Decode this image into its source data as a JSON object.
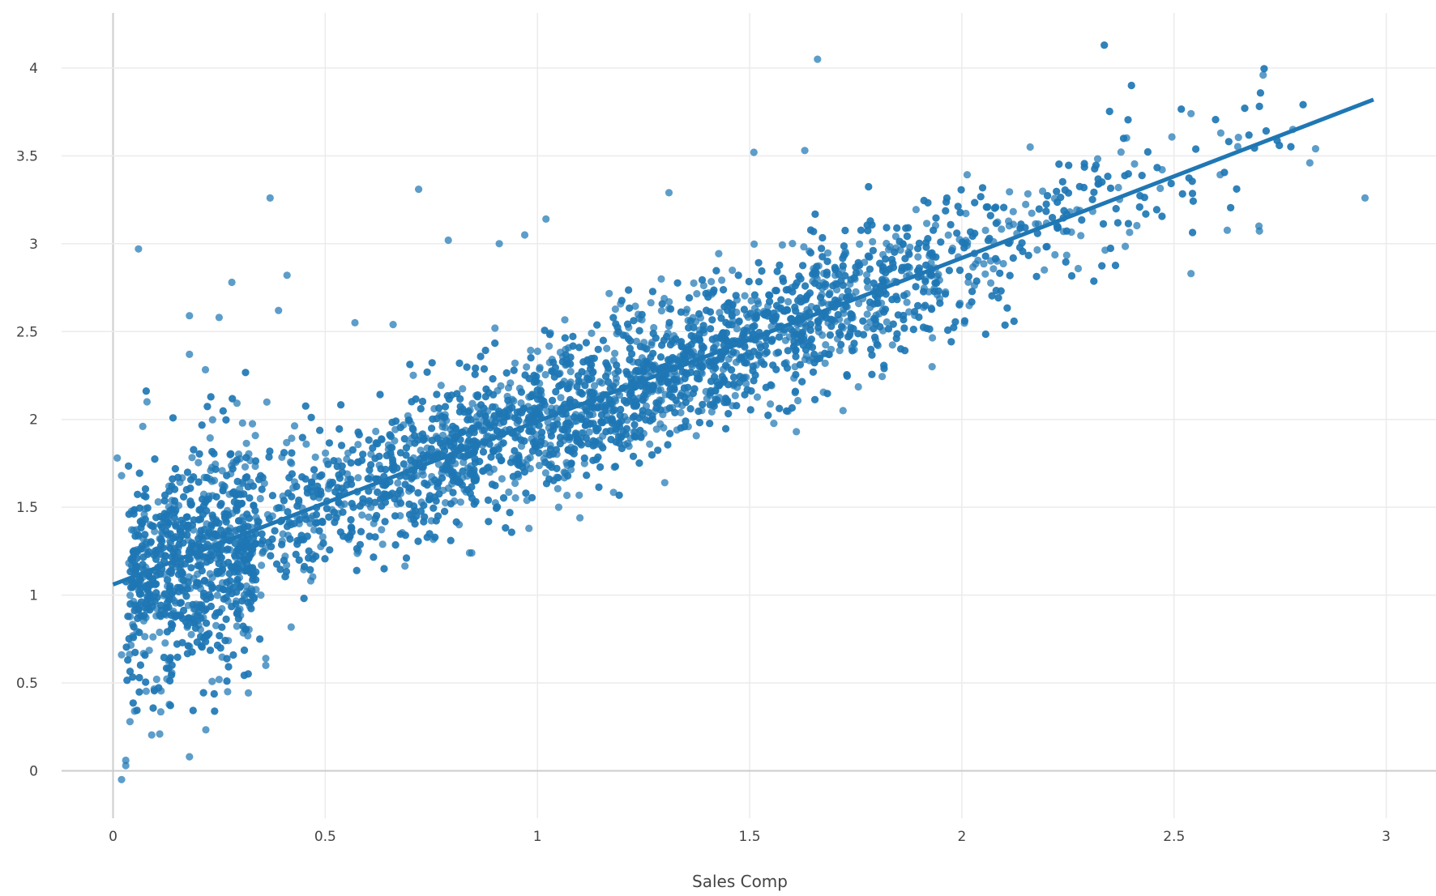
{
  "chart_data": {
    "type": "scatter",
    "title": "",
    "xlabel": "Sales Comp",
    "ylabel": "",
    "xlim": [
      -0.11,
      3.1
    ],
    "ylim": [
      -0.25,
      4.3
    ],
    "x_ticks": [
      0,
      0.5,
      1,
      1.5,
      2,
      2.5,
      3
    ],
    "x_tick_labels": [
      "0",
      "0.5",
      "1",
      "1.5",
      "2",
      "2.5",
      "3"
    ],
    "y_ticks": [
      0,
      0.5,
      1,
      1.5,
      2,
      2.5,
      3,
      3.5,
      4
    ],
    "y_tick_labels": [
      "0",
      "0.5",
      "1",
      "1.5",
      "2",
      "2.5",
      "3",
      "3.5",
      "4"
    ],
    "grid": true,
    "legend": "none",
    "colors": {
      "points": "#1f77b4",
      "trend_line": "#1f77b4",
      "grid": "#ebebeb",
      "zero_line": "#cccccc",
      "text": "#444444"
    },
    "trend_line": {
      "x": [
        0,
        2.97
      ],
      "y": [
        1.06,
        3.82
      ]
    },
    "series": [
      {
        "values": [
          [
            0.01,
            1.78
          ],
          [
            0.02,
            1.68
          ],
          [
            0.06,
            2.97
          ],
          [
            0.07,
            1.96
          ],
          [
            0.08,
            2.1
          ],
          [
            0.18,
            2.59
          ],
          [
            0.18,
            2.37
          ],
          [
            0.25,
            2.58
          ],
          [
            0.28,
            2.78
          ],
          [
            0.37,
            3.26
          ],
          [
            0.41,
            2.82
          ],
          [
            0.39,
            2.62
          ],
          [
            0.72,
            3.31
          ],
          [
            0.79,
            3.02
          ],
          [
            0.91,
            3.0
          ],
          [
            1.02,
            3.14
          ],
          [
            0.97,
            3.05
          ],
          [
            1.31,
            3.29
          ],
          [
            1.51,
            3.52
          ],
          [
            1.63,
            3.53
          ],
          [
            1.66,
            4.05
          ],
          [
            2.71,
            3.96
          ],
          [
            2.95,
            3.26
          ],
          [
            2.54,
            3.74
          ],
          [
            2.82,
            3.46
          ],
          [
            2.78,
            3.65
          ],
          [
            2.61,
            3.63
          ],
          [
            0.02,
            -0.05
          ],
          [
            0.03,
            0.03
          ],
          [
            0.03,
            0.06
          ],
          [
            0.18,
            0.08
          ],
          [
            0.11,
            0.21
          ],
          [
            0.04,
            0.28
          ],
          [
            0.36,
            0.64
          ],
          [
            0.36,
            0.6
          ],
          [
            0.02,
            0.66
          ],
          [
            0.27,
            0.45
          ],
          [
            0.25,
            0.52
          ],
          [
            0.57,
            2.55
          ],
          [
            0.66,
            2.54
          ],
          [
            1.93,
            2.3
          ],
          [
            1.72,
            2.05
          ],
          [
            1.61,
            1.93
          ],
          [
            1.3,
            1.64
          ],
          [
            1.1,
            1.44
          ],
          [
            1.05,
            1.5
          ],
          [
            0.98,
            1.38
          ],
          [
            0.84,
            1.24
          ],
          [
            2.54,
            2.83
          ],
          [
            2.7,
            3.1
          ]
        ]
      }
    ]
  }
}
